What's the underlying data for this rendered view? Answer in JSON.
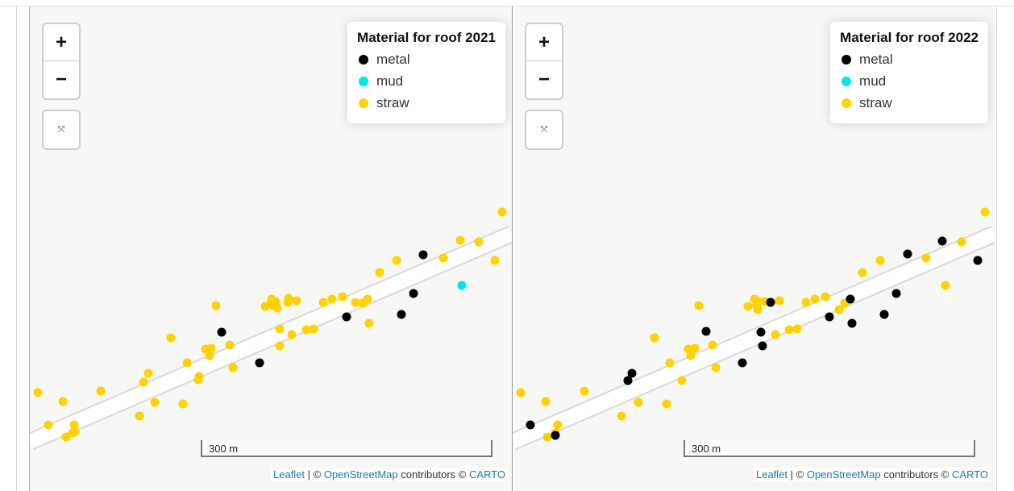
{
  "colors": {
    "metal": "#000000",
    "mud": "#00e5ee",
    "straw": "#ffd200"
  },
  "controls": {
    "zoom_in": "+",
    "zoom_out": "−",
    "fit_icon": "fullscreen-exit-icon"
  },
  "attribution": {
    "leaflet": "Leaflet",
    "separator": " | © ",
    "osm": "OpenStreetMap",
    "contributors": " contributors © ",
    "carto": "CARTO"
  },
  "maps": [
    {
      "legend_title": "Material for roof 2021",
      "legend": [
        {
          "label": "metal",
          "color_key": "metal"
        },
        {
          "label": "mud",
          "color_key": "mud"
        },
        {
          "label": "straw",
          "color_key": "straw"
        }
      ],
      "scale_label": "300 m"
    },
    {
      "legend_title": "Material for roof 2022",
      "legend": [
        {
          "label": "metal",
          "color_key": "metal"
        },
        {
          "label": "mud",
          "color_key": "mud"
        },
        {
          "label": "straw",
          "color_key": "straw"
        }
      ],
      "scale_label": "300 m"
    }
  ]
}
